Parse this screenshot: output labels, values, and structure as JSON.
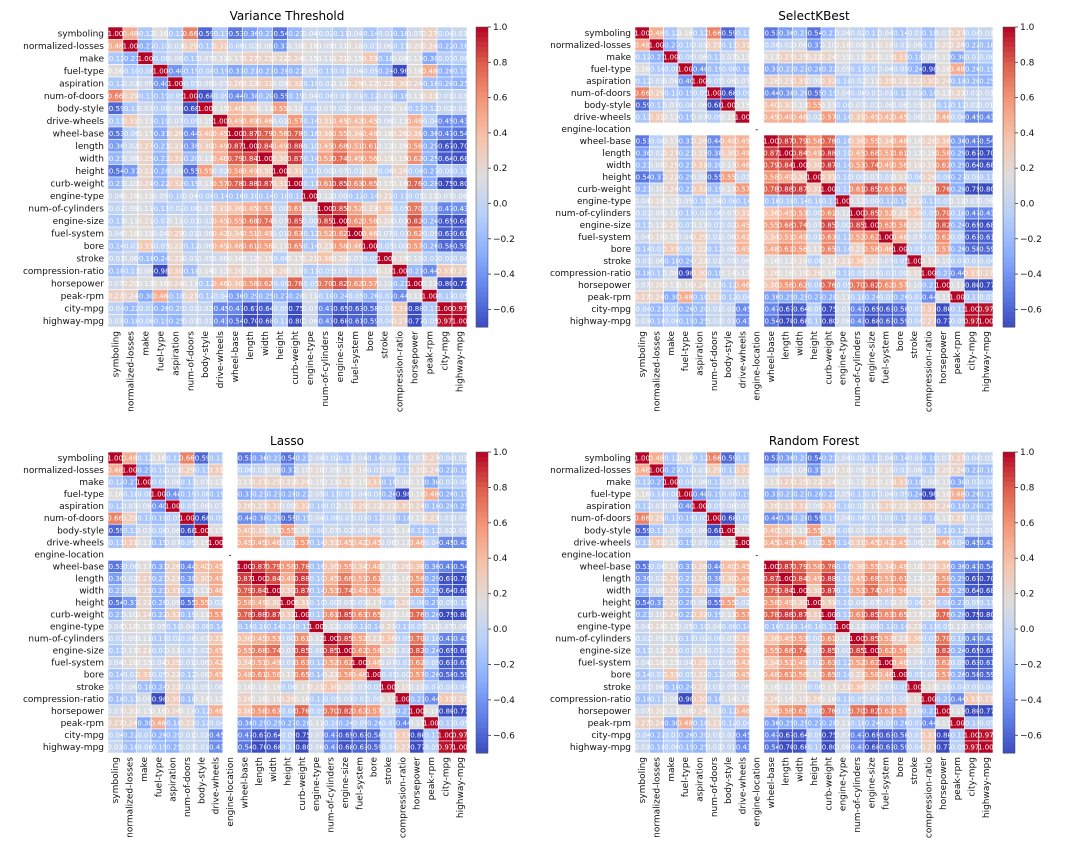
{
  "chart_data": [
    {
      "type": "heatmap",
      "title": "Variance Threshold",
      "labels": [
        "symboling",
        "normalized-losses",
        "make",
        "fuel-type",
        "aspiration",
        "num-of-doors",
        "body-style",
        "drive-wheels",
        "wheel-base",
        "length",
        "width",
        "height",
        "curb-weight",
        "engine-type",
        "num-of-cylinders",
        "engine-size",
        "fuel-system",
        "bore",
        "stroke",
        "compression-ratio",
        "horsepower",
        "peak-rpm",
        "city-mpg",
        "highway-mpg"
      ],
      "colorbar": {
        "min": -0.7,
        "max": 1.0,
        "ticks": [
          "1.0",
          "0.8",
          "0.6",
          "0.4",
          "0.2",
          "0.0",
          "−0.2",
          "−0.4",
          "−0.6"
        ]
      },
      "colormap": "coolwarm"
    },
    {
      "type": "heatmap",
      "title": "SelectKBest",
      "labels": [
        "symboling",
        "normalized-losses",
        "make",
        "fuel-type",
        "aspiration",
        "num-of-doors",
        "body-style",
        "drive-wheels",
        "engine-location",
        "wheel-base",
        "length",
        "width",
        "height",
        "curb-weight",
        "engine-type",
        "num-of-cylinders",
        "engine-size",
        "fuel-system",
        "bore",
        "stroke",
        "compression-ratio",
        "horsepower",
        "peak-rpm",
        "city-mpg",
        "highway-mpg"
      ],
      "blank_label": "engine-location",
      "colorbar": {
        "min": -0.7,
        "max": 1.0,
        "ticks": [
          "1.0",
          "0.8",
          "0.6",
          "0.4",
          "0.2",
          "0.0",
          "−0.2",
          "−0.4",
          "−0.6"
        ]
      },
      "colormap": "coolwarm"
    },
    {
      "type": "heatmap",
      "title": "Lasso",
      "labels": [
        "symboling",
        "normalized-losses",
        "make",
        "fuel-type",
        "aspiration",
        "num-of-doors",
        "body-style",
        "drive-wheels",
        "engine-location",
        "wheel-base",
        "length",
        "width",
        "height",
        "curb-weight",
        "engine-type",
        "num-of-cylinders",
        "engine-size",
        "fuel-system",
        "bore",
        "stroke",
        "compression-ratio",
        "horsepower",
        "peak-rpm",
        "city-mpg",
        "highway-mpg"
      ],
      "blank_label": "engine-location",
      "colorbar": {
        "min": -0.7,
        "max": 1.0,
        "ticks": [
          "1.0",
          "0.8",
          "0.6",
          "0.4",
          "0.2",
          "0.0",
          "−0.2",
          "−0.4",
          "−0.6"
        ]
      },
      "colormap": "coolwarm"
    },
    {
      "type": "heatmap",
      "title": "Random Forest",
      "labels": [
        "symboling",
        "normalized-losses",
        "make",
        "fuel-type",
        "aspiration",
        "num-of-doors",
        "body-style",
        "drive-wheels",
        "engine-location",
        "wheel-base",
        "length",
        "width",
        "height",
        "curb-weight",
        "engine-type",
        "num-of-cylinders",
        "engine-size",
        "fuel-system",
        "bore",
        "stroke",
        "compression-ratio",
        "horsepower",
        "peak-rpm",
        "city-mpg",
        "highway-mpg"
      ],
      "blank_label": "engine-location",
      "colorbar": {
        "min": -0.7,
        "max": 1.0,
        "ticks": [
          "1.0",
          "0.8",
          "0.6",
          "0.4",
          "0.2",
          "0.0",
          "−0.2",
          "−0.4",
          "−0.6"
        ]
      },
      "colormap": "coolwarm"
    }
  ],
  "blank_cell_text": "-",
  "correlations": {
    "symboling": {
      "normalized-losses": 0.48,
      "make": -0.12,
      "fuel-type": 0.16,
      "aspiration": -0.12,
      "num-of-doors": 0.66,
      "body-style": -0.59,
      "drive-wheels": -0.13,
      "wheel-base": -0.53,
      "length": -0.36,
      "width": -0.23,
      "height": -0.54,
      "curb-weight": -0.23,
      "engine-type": 0.04,
      "num-of-cylinders": -0.02,
      "engine-size": -0.11,
      "fuel-system": 0.04,
      "bore": -0.14,
      "stroke": -0.01,
      "compression-ratio": -0.18,
      "horsepower": 0.07,
      "peak-rpm": 0.27,
      "city-mpg": -0.04,
      "highway-mpg": 0.03
    },
    "normalized-losses": {
      "make": -0.27,
      "fuel-type": -0.1,
      "aspiration": 0.03,
      "num-of-doors": 0.29,
      "body-style": -0.13,
      "drive-wheels": 0.31,
      "wheel-base": -0.06,
      "length": 0.02,
      "width": 0.08,
      "height": -0.37,
      "curb-weight": 0.1,
      "engine-type": 0.18,
      "num-of-cylinders": 0.09,
      "engine-size": 0.11,
      "fuel-system": 0.18,
      "bore": -0.03,
      "stroke": 0.06,
      "compression-ratio": -0.11,
      "horsepower": 0.2,
      "peak-rpm": 0.24,
      "city-mpg": -0.22,
      "highway-mpg": -0.18
    },
    "make": {
      "fuel-type": -0.08,
      "aspiration": 0.06,
      "num-of-doors": -0.13,
      "body-style": 0.07,
      "drive-wheels": 0.13,
      "wheel-base": 0.17,
      "length": 0.27,
      "width": 0.25,
      "height": 0.22,
      "curb-weight": 0.24,
      "engine-type": 0.15,
      "num-of-cylinders": 0.11,
      "engine-size": 0.21,
      "fuel-system": 0.15,
      "bore": 0.33,
      "stroke": -0.18,
      "compression-ratio": 0.08,
      "horsepower": 0.13,
      "peak-rpm": -0.3,
      "city-mpg": -0.07,
      "highway-mpg": -0.06
    },
    "fuel-type": {
      "aspiration": -0.4,
      "num-of-doors": -0.19,
      "body-style": -0.08,
      "drive-wheels": -0.19,
      "wheel-base": -0.31,
      "length": -0.21,
      "width": -0.23,
      "height": -0.28,
      "curb-weight": -0.22,
      "engine-type": 0.05,
      "num-of-cylinders": -0.11,
      "engine-size": -0.07,
      "fuel-system": 0.04,
      "bore": -0.05,
      "stroke": -0.24,
      "compression-ratio": -0.98,
      "horsepower": 0.16,
      "peak-rpm": 0.48,
      "city-mpg": -0.26,
      "highway-mpg": -0.19
    },
    "aspiration": {
      "num-of-doors": -0.05,
      "body-style": 0.06,
      "drive-wheels": 0.07,
      "wheel-base": 0.26,
      "length": 0.23,
      "width": 0.31,
      "height": 0.09,
      "curb-weight": 0.32,
      "engine-type": -0.1,
      "num-of-cylinders": -0.02,
      "engine-size": 0.11,
      "fuel-system": 0.29,
      "bore": 0.22,
      "stroke": 0.22,
      "compression-ratio": 0.3,
      "horsepower": 0.24,
      "peak-rpm": -0.18,
      "city-mpg": -0.2,
      "highway-mpg": -0.25
    },
    "num-of-doors": {
      "body-style": -0.68,
      "drive-wheels": -0.09,
      "wheel-base": -0.44,
      "length": -0.38,
      "width": -0.2,
      "height": -0.55,
      "curb-weight": -0.19,
      "engine-type": 0.04,
      "num-of-cylinders": -0.06,
      "engine-size": -0.01,
      "fuel-system": 0.01,
      "bore": -0.12,
      "stroke": 0.01,
      "compression-ratio": -0.18,
      "horsepower": 0.13,
      "peak-rpm": 0.23,
      "city-mpg": 0.01,
      "highway-mpg": 0.03
    },
    "body-style": {
      "drive-wheels": 0.15,
      "wheel-base": 0.4,
      "length": 0.3,
      "width": 0.13,
      "height": 0.55,
      "curb-weight": 0.13,
      "engine-type": -0.08,
      "num-of-cylinders": 0.07,
      "engine-size": 0.02,
      "fuel-system": 0.06,
      "bore": 0.06,
      "stroke": 0.05,
      "compression-ratio": 0.14,
      "horsepower": -0.12,
      "peak-rpm": -0.12,
      "city-mpg": 0.02,
      "highway-mpg": 0.01
    },
    "drive-wheels": {
      "wheel-base": 0.45,
      "length": 0.49,
      "width": 0.46,
      "height": 0.02,
      "curb-weight": 0.57,
      "engine-type": -0.14,
      "num-of-cylinders": 0.31,
      "engine-size": 0.45,
      "fuel-system": 0.42,
      "bore": 0.45,
      "stroke": 0.06,
      "compression-ratio": 0.12,
      "horsepower": 0.46,
      "peak-rpm": -0.04,
      "city-mpg": -0.45,
      "highway-mpg": -0.43
    },
    "wheel-base": {
      "length": 0.87,
      "width": 0.79,
      "height": 0.58,
      "curb-weight": 0.78,
      "engine-type": -0.16,
      "num-of-cylinders": 0.36,
      "engine-size": 0.55,
      "fuel-system": 0.34,
      "bore": 0.48,
      "stroke": 0.16,
      "compression-ratio": 0.26,
      "horsepower": 0.36,
      "peak-rpm": -0.36,
      "city-mpg": -0.47,
      "highway-mpg": -0.54
    },
    "length": {
      "width": 0.84,
      "height": 0.49,
      "curb-weight": 0.88,
      "engine-type": -0.1,
      "num-of-cylinders": 0.45,
      "engine-size": 0.68,
      "fuel-system": 0.51,
      "bore": 0.61,
      "stroke": 0.12,
      "compression-ratio": 0.16,
      "horsepower": 0.58,
      "peak-rpm": -0.29,
      "city-mpg": -0.67,
      "highway-mpg": -0.7
    },
    "width": {
      "height": 0.3,
      "curb-weight": 0.87,
      "engine-type": -0.14,
      "num-of-cylinders": 0.53,
      "engine-size": 0.74,
      "fuel-system": 0.49,
      "bore": 0.56,
      "stroke": 0.19,
      "compression-ratio": 0.19,
      "horsepower": 0.62,
      "peak-rpm": -0.25,
      "city-mpg": -0.64,
      "highway-mpg": -0.68
    },
    "height": {
      "curb-weight": 0.31,
      "engine-type": -0.1,
      "num-of-cylinders": 0.0,
      "engine-size": 0.07,
      "fuel-system": 0.01,
      "bore": 0.17,
      "stroke": -0.06,
      "compression-ratio": 0.26,
      "horsepower": -0.08,
      "peak-rpm": -0.27,
      "city-mpg": -0.05,
      "highway-mpg": -0.11
    },
    "curb-weight": {
      "engine-type": -0.11,
      "num-of-cylinders": 0.61,
      "engine-size": 0.85,
      "fuel-system": 0.63,
      "bore": 0.65,
      "stroke": 0.17,
      "compression-ratio": 0.16,
      "horsepower": 0.76,
      "peak-rpm": -0.28,
      "city-mpg": -0.75,
      "highway-mpg": -0.8
    },
    "engine-type": {
      "num-of-cylinders": 0.12,
      "engine-size": 0.0,
      "fuel-system": -0.12,
      "bore": -0.14,
      "stroke": 0.21,
      "compression-ratio": -0.11,
      "horsepower": -0.05,
      "peak-rpm": 0.11,
      "city-mpg": 0.07,
      "highway-mpg": 0.06
    },
    "num-of-cylinders": {
      "engine-size": 0.85,
      "fuel-system": 0.52,
      "bore": 0.23,
      "stroke": 0.36,
      "compression-ratio": -0.05,
      "horsepower": 0.7,
      "peak-rpm": -0.1,
      "city-mpg": -0.47,
      "highway-mpg": -0.43
    },
    "engine-size": {
      "fuel-system": 0.62,
      "bore": 0.58,
      "stroke": 0.2,
      "compression-ratio": 0.03,
      "horsepower": 0.82,
      "peak-rpm": -0.24,
      "city-mpg": -0.65,
      "highway-mpg": -0.68
    },
    "fuel-system": {
      "bore": 0.46,
      "stroke": 0.07,
      "compression-ratio": -0.03,
      "horsepower": 0.62,
      "peak-rpm": -0.05,
      "city-mpg": -0.63,
      "highway-mpg": -0.61
    },
    "bore": {
      "stroke": -0.05,
      "compression-ratio": 0.0,
      "horsepower": 0.57,
      "peak-rpm": -0.26,
      "city-mpg": -0.58,
      "highway-mpg": -0.59
    },
    "stroke": {
      "compression-ratio": 0.19,
      "horsepower": 0.1,
      "peak-rpm": -0.07,
      "city-mpg": -0.03,
      "highway-mpg": -0.04
    },
    "compression-ratio": {
      "horsepower": -0.21,
      "peak-rpm": -0.44,
      "city-mpg": 0.33,
      "highway-mpg": 0.27
    },
    "horsepower": {
      "peak-rpm": 0.13,
      "city-mpg": -0.8,
      "highway-mpg": -0.77
    },
    "peak-rpm": {
      "city-mpg": -0.11,
      "highway-mpg": -0.05
    },
    "city-mpg": {
      "highway-mpg": 0.97
    }
  }
}
